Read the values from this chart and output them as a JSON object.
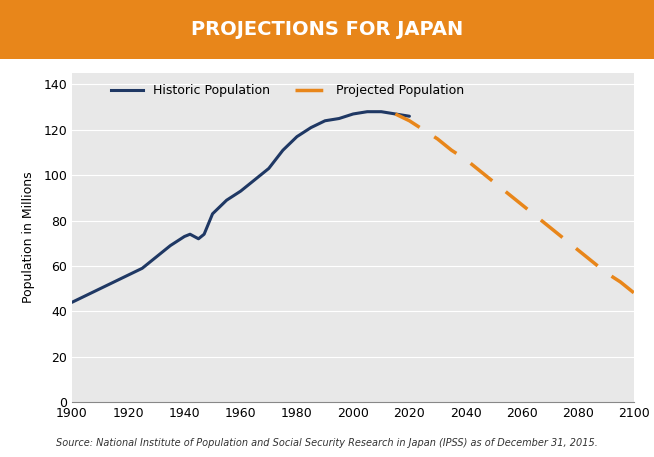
{
  "title": "PROJECTIONS FOR JAPAN",
  "title_bg_color": "#E8861A",
  "title_text_color": "#FFFFFF",
  "ylabel": "Population in Millions",
  "source_text": "Source: National Institute of Population and Social Security Research in Japan (IPSS) as of December 31, 2015.",
  "xlim": [
    1900,
    2100
  ],
  "ylim": [
    0,
    145
  ],
  "xticks": [
    1900,
    1920,
    1940,
    1960,
    1980,
    2000,
    2020,
    2040,
    2060,
    2080,
    2100
  ],
  "yticks": [
    0,
    20,
    40,
    60,
    80,
    100,
    120,
    140
  ],
  "historic_color": "#1F3864",
  "projected_color": "#E8861A",
  "plot_bg_color": "#E8E8E8",
  "historic_x": [
    1900,
    1905,
    1910,
    1915,
    1920,
    1925,
    1930,
    1935,
    1940,
    1942,
    1945,
    1947,
    1950,
    1955,
    1960,
    1965,
    1970,
    1975,
    1980,
    1985,
    1990,
    1995,
    2000,
    2005,
    2010,
    2015,
    2020
  ],
  "historic_y": [
    44,
    47,
    50,
    53,
    56,
    59,
    64,
    69,
    73,
    74,
    72,
    74,
    83,
    89,
    93,
    98,
    103,
    111,
    117,
    121,
    124,
    125,
    127,
    128,
    128,
    127,
    126
  ],
  "projected_x": [
    2015,
    2020,
    2025,
    2030,
    2035,
    2040,
    2045,
    2050,
    2055,
    2060,
    2065,
    2070,
    2075,
    2080,
    2085,
    2090,
    2095,
    2100
  ],
  "projected_y": [
    127,
    124,
    120,
    116,
    111,
    107,
    102,
    97,
    92,
    87,
    82,
    77,
    72,
    67,
    62,
    57,
    53,
    48
  ],
  "legend_historic_label": "Historic Population",
  "legend_projected_label": "Projected Population"
}
